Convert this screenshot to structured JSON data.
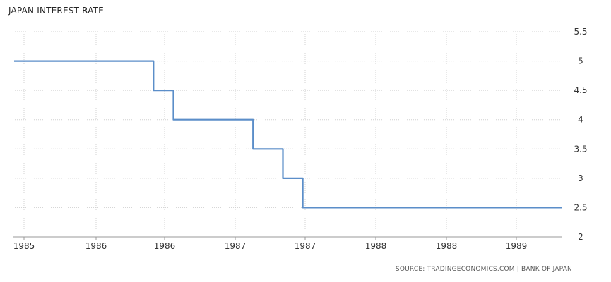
{
  "chart_data": {
    "type": "line",
    "title": "JAPAN INTEREST RATE",
    "xlabel": "",
    "ylabel": "",
    "x_tick_labels": [
      "1985",
      "1986",
      "1986",
      "1987",
      "1987",
      "1988",
      "1988",
      "1989"
    ],
    "y_tick_labels": [
      "5.5",
      "5",
      "4.5",
      "4",
      "3.5",
      "3",
      "2.5",
      "2"
    ],
    "ylim": [
      2,
      5.5
    ],
    "grid": true,
    "legend": "none",
    "series": [
      {
        "color": "#5b8ec9",
        "x": [
          "1984-11",
          "1986-01",
          "1986-01",
          "1986-03",
          "1986-03",
          "1986-11",
          "1986-11",
          "1987-02",
          "1987-02",
          "1987-04",
          "1987-04",
          "1987-06",
          "1987-06",
          "1988-02",
          "1988-02",
          "1989-06"
        ],
        "values": [
          5.0,
          5.0,
          4.5,
          4.5,
          4.0,
          4.0,
          3.5,
          3.5,
          3.0,
          3.0,
          2.5,
          2.5,
          2.5,
          2.5,
          2.5,
          2.5
        ]
      }
    ]
  },
  "source": {
    "text": "SOURCE: TRADINGECONOMICS.COM | BANK OF JAPAN"
  }
}
